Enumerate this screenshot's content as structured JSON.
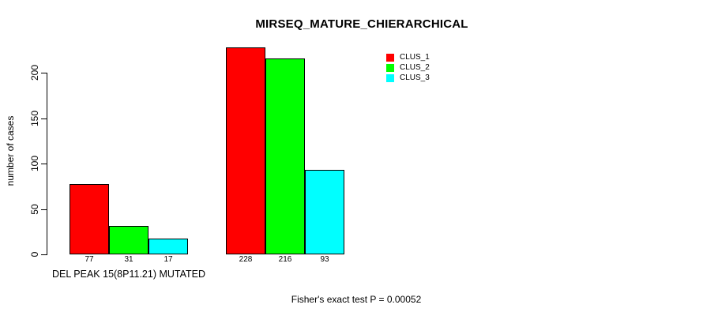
{
  "chart_data": {
    "type": "bar",
    "title": "MIRSEQ_MATURE_CHIERARCHICAL",
    "ylabel": "number of cases",
    "xlabel": "",
    "yticks": [
      0,
      50,
      100,
      150,
      200
    ],
    "ylim": [
      0,
      230
    ],
    "grid": false,
    "legend_position": "top-right",
    "series": [
      {
        "name": "CLUS_1",
        "color": "#ff0000"
      },
      {
        "name": "CLUS_2",
        "color": "#00ff00"
      },
      {
        "name": "CLUS_3",
        "color": "#00ffff"
      }
    ],
    "groups": [
      {
        "label": "DEL PEAK 15(8P11.21) MUTATED",
        "values": [
          77,
          31,
          17
        ]
      },
      {
        "label": "",
        "values": [
          228,
          216,
          93
        ]
      }
    ],
    "annotation": "Fisher's exact test P = 0.00052"
  }
}
